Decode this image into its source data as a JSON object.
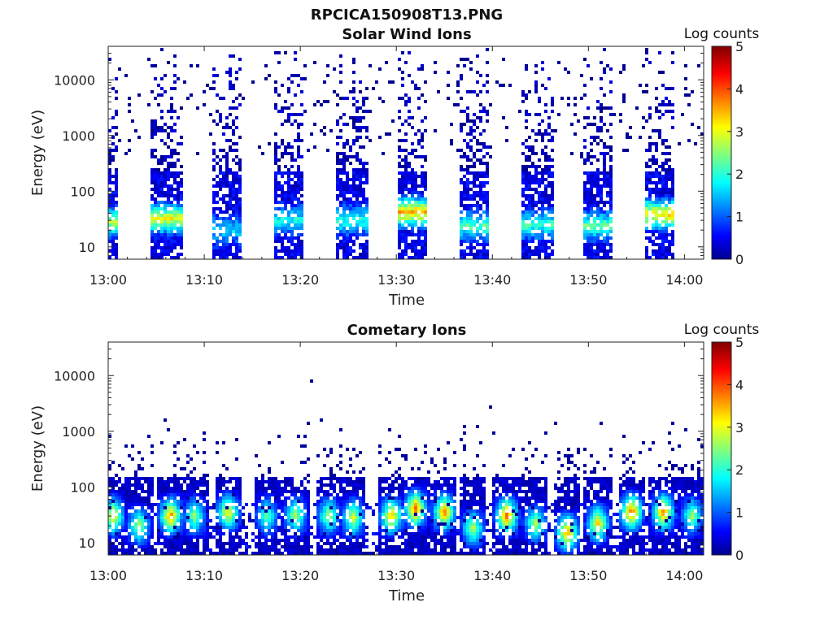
{
  "figure_title": "RPCICA150908T13.PNG",
  "chart_data": [
    {
      "type": "heatmap",
      "title": "Solar Wind Ions",
      "xlabel": "Time",
      "ylabel": "Energy (eV)",
      "x_tick_labels": [
        "13:00",
        "13:10",
        "13:20",
        "13:30",
        "13:40",
        "13:50",
        "14:00"
      ],
      "x_tick_minutes": [
        0,
        10,
        20,
        30,
        40,
        50,
        60
      ],
      "xlim_minutes": [
        0,
        62
      ],
      "y_tick_labels": [
        "10",
        "100",
        "1000",
        "10000"
      ],
      "y_tick_values": [
        10,
        100,
        1000,
        10000
      ],
      "ylim": [
        6,
        40000
      ],
      "y_scale": "log",
      "colorbar_label": "Log counts",
      "colorbar_ticks": [
        "0",
        "1",
        "2",
        "3",
        "4",
        "5"
      ],
      "clim": [
        0,
        5
      ],
      "colormap": "jet",
      "scan_blocks": [
        {
          "start_min": 0.0,
          "end_min": 1.0,
          "peak_energy_eV": 28,
          "peak_log_counts": 2.3
        },
        {
          "start_min": 4.5,
          "end_min": 7.8,
          "peak_energy_eV": 32,
          "peak_log_counts": 2.6
        },
        {
          "start_min": 11.0,
          "end_min": 14.0,
          "peak_energy_eV": 20,
          "peak_log_counts": 1.2
        },
        {
          "start_min": 17.3,
          "end_min": 20.3,
          "peak_energy_eV": 30,
          "peak_log_counts": 1.5
        },
        {
          "start_min": 23.8,
          "end_min": 27.0,
          "peak_energy_eV": 30,
          "peak_log_counts": 1.6
        },
        {
          "start_min": 30.3,
          "end_min": 33.3,
          "peak_energy_eV": 42,
          "peak_log_counts": 3.0
        },
        {
          "start_min": 36.5,
          "end_min": 39.8,
          "peak_energy_eV": 24,
          "peak_log_counts": 1.8
        },
        {
          "start_min": 43.0,
          "end_min": 46.3,
          "peak_energy_eV": 25,
          "peak_log_counts": 1.7
        },
        {
          "start_min": 49.5,
          "end_min": 52.5,
          "peak_energy_eV": 24,
          "peak_log_counts": 1.9
        },
        {
          "start_min": 55.8,
          "end_min": 59.0,
          "peak_energy_eV": 38,
          "peak_log_counts": 2.8
        }
      ]
    },
    {
      "type": "heatmap",
      "title": "Cometary Ions",
      "xlabel": "Time",
      "ylabel": "Energy (eV)",
      "x_tick_labels": [
        "13:00",
        "13:10",
        "13:20",
        "13:30",
        "13:40",
        "13:50",
        "14:00"
      ],
      "x_tick_minutes": [
        0,
        10,
        20,
        30,
        40,
        50,
        60
      ],
      "xlim_minutes": [
        0,
        62
      ],
      "y_tick_labels": [
        "10",
        "100",
        "1000",
        "10000"
      ],
      "y_tick_values": [
        10,
        100,
        1000,
        10000
      ],
      "ylim": [
        6,
        40000
      ],
      "y_scale": "log",
      "colorbar_label": "Log counts",
      "colorbar_ticks": [
        "0",
        "1",
        "2",
        "3",
        "4",
        "5"
      ],
      "clim": [
        0,
        5
      ],
      "colormap": "jet",
      "features": [
        {
          "time_min": 0.5,
          "peak_energy_eV": 30,
          "peak_log_counts": 3.2
        },
        {
          "time_min": 3.2,
          "peak_energy_eV": 20,
          "peak_log_counts": 2.6
        },
        {
          "time_min": 6.5,
          "peak_energy_eV": 30,
          "peak_log_counts": 3.6
        },
        {
          "time_min": 9.0,
          "peak_energy_eV": 30,
          "peak_log_counts": 2.4
        },
        {
          "time_min": 12.5,
          "peak_energy_eV": 35,
          "peak_log_counts": 3.1
        },
        {
          "time_min": 16.5,
          "peak_energy_eV": 30,
          "peak_log_counts": 2.2
        },
        {
          "time_min": 19.5,
          "peak_energy_eV": 30,
          "peak_log_counts": 2.6
        },
        {
          "time_min": 23.0,
          "peak_energy_eV": 30,
          "peak_log_counts": 2.6
        },
        {
          "time_min": 25.5,
          "peak_energy_eV": 28,
          "peak_log_counts": 2.8
        },
        {
          "time_min": 29.5,
          "peak_energy_eV": 30,
          "peak_log_counts": 3.4
        },
        {
          "time_min": 32.0,
          "peak_energy_eV": 40,
          "peak_log_counts": 3.8
        },
        {
          "time_min": 35.0,
          "peak_energy_eV": 35,
          "peak_log_counts": 3.6
        },
        {
          "time_min": 38.0,
          "peak_energy_eV": 18,
          "peak_log_counts": 2.6
        },
        {
          "time_min": 41.5,
          "peak_energy_eV": 30,
          "peak_log_counts": 3.8
        },
        {
          "time_min": 44.5,
          "peak_energy_eV": 22,
          "peak_log_counts": 2.6
        },
        {
          "time_min": 47.8,
          "peak_energy_eV": 15,
          "peak_log_counts": 3.6
        },
        {
          "time_min": 51.0,
          "peak_energy_eV": 22,
          "peak_log_counts": 3.2
        },
        {
          "time_min": 54.5,
          "peak_energy_eV": 35,
          "peak_log_counts": 3.8
        },
        {
          "time_min": 57.8,
          "peak_energy_eV": 35,
          "peak_log_counts": 3.6
        },
        {
          "time_min": 60.8,
          "peak_energy_eV": 30,
          "peak_log_counts": 2.4
        }
      ]
    }
  ]
}
